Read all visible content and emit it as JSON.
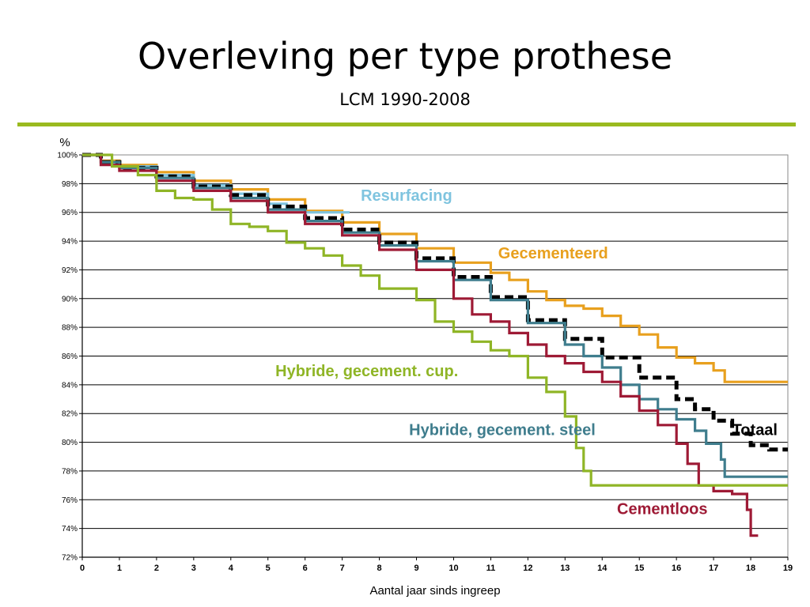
{
  "colors": {
    "rule": "#9aba1f",
    "grid": "#000000",
    "axis": "#000000"
  },
  "chart_data": {
    "type": "line",
    "title": "Overleving per type prothese",
    "subtitle": "LCM 1990-2008",
    "xlabel": "Aantal jaar sinds ingreep",
    "ylabel": "%",
    "xlim": [
      0,
      19
    ],
    "ylim": [
      72,
      100
    ],
    "grid": true,
    "x_ticks": [
      0,
      1,
      2,
      3,
      4,
      5,
      6,
      7,
      8,
      9,
      10,
      11,
      12,
      13,
      14,
      15,
      16,
      17,
      18,
      19
    ],
    "y_ticks": [
      72,
      74,
      76,
      78,
      80,
      82,
      84,
      86,
      88,
      90,
      92,
      94,
      96,
      98,
      100
    ],
    "y_tick_labels": [
      "72%",
      "74%",
      "76%",
      "78%",
      "80%",
      "82%",
      "84%",
      "86%",
      "88%",
      "90%",
      "92%",
      "94%",
      "96%",
      "98%",
      "100%"
    ],
    "series": [
      {
        "name": "Gecementeerd",
        "color": "#e8a01e",
        "dash": false,
        "step": true,
        "points": [
          [
            0,
            100
          ],
          [
            0.5,
            99.6
          ],
          [
            1,
            99.3
          ],
          [
            2,
            98.8
          ],
          [
            3,
            98.2
          ],
          [
            4,
            97.6
          ],
          [
            5,
            96.9
          ],
          [
            6,
            96.1
          ],
          [
            7,
            95.3
          ],
          [
            8,
            94.5
          ],
          [
            9,
            93.5
          ],
          [
            10,
            92.5
          ],
          [
            11,
            91.8
          ],
          [
            11.5,
            91.3
          ],
          [
            12,
            90.5
          ],
          [
            12.5,
            89.9
          ],
          [
            13,
            89.5
          ],
          [
            13.5,
            89.3
          ],
          [
            14,
            88.8
          ],
          [
            14.5,
            88.1
          ],
          [
            15,
            87.5
          ],
          [
            15.5,
            86.6
          ],
          [
            16,
            85.9
          ],
          [
            16.5,
            85.5
          ],
          [
            17,
            85.0
          ],
          [
            17.3,
            84.2
          ],
          [
            19,
            84.2
          ]
        ]
      },
      {
        "name": "Resurfacing",
        "color": "#7fc4df",
        "dash": false,
        "step": true,
        "points": [
          [
            0,
            100
          ],
          [
            0.5,
            99.5
          ],
          [
            1,
            99.2
          ],
          [
            2,
            98.6
          ],
          [
            3,
            97.9
          ],
          [
            4,
            97.3
          ],
          [
            5,
            96.6
          ],
          [
            5.5,
            96.2
          ],
          [
            6,
            96.0
          ],
          [
            7.2,
            96.0
          ]
        ]
      },
      {
        "name": "Totaal",
        "color": "#000000",
        "dash": true,
        "step": true,
        "points": [
          [
            0,
            100
          ],
          [
            0.5,
            99.5
          ],
          [
            1,
            99.1
          ],
          [
            2,
            98.5
          ],
          [
            3,
            97.8
          ],
          [
            4,
            97.2
          ],
          [
            5,
            96.4
          ],
          [
            6,
            95.6
          ],
          [
            7,
            94.8
          ],
          [
            8,
            93.9
          ],
          [
            9,
            92.8
          ],
          [
            10,
            91.5
          ],
          [
            11,
            90.1
          ],
          [
            12,
            88.5
          ],
          [
            13,
            87.2
          ],
          [
            14,
            85.9
          ],
          [
            15,
            84.5
          ],
          [
            16,
            83.0
          ],
          [
            16.5,
            82.3
          ],
          [
            17,
            81.5
          ],
          [
            17.5,
            80.6
          ],
          [
            18,
            79.8
          ],
          [
            18.5,
            79.5
          ],
          [
            19,
            79.5
          ]
        ]
      },
      {
        "name": "Hybride, gecement. steel",
        "color": "#3f7d8d",
        "dash": false,
        "step": true,
        "points": [
          [
            0,
            100
          ],
          [
            0.5,
            99.5
          ],
          [
            1,
            99.1
          ],
          [
            2,
            98.4
          ],
          [
            3,
            97.7
          ],
          [
            4,
            97.0
          ],
          [
            5,
            96.2
          ],
          [
            6,
            95.4
          ],
          [
            7,
            94.6
          ],
          [
            8,
            93.7
          ],
          [
            9,
            92.6
          ],
          [
            10,
            91.3
          ],
          [
            11,
            89.9
          ],
          [
            12,
            88.3
          ],
          [
            13,
            86.8
          ],
          [
            13.5,
            86.0
          ],
          [
            14,
            85.2
          ],
          [
            14.5,
            84.0
          ],
          [
            15,
            83.0
          ],
          [
            15.5,
            82.3
          ],
          [
            16,
            81.6
          ],
          [
            16.5,
            80.8
          ],
          [
            16.8,
            79.9
          ],
          [
            17,
            79.9
          ],
          [
            17.2,
            78.8
          ],
          [
            17.3,
            77.6
          ],
          [
            19,
            77.6
          ]
        ]
      },
      {
        "name": "Cementloos",
        "color": "#9e1a35",
        "dash": false,
        "step": true,
        "points": [
          [
            0,
            100
          ],
          [
            0.5,
            99.3
          ],
          [
            1,
            98.9
          ],
          [
            2,
            98.2
          ],
          [
            3,
            97.5
          ],
          [
            4,
            96.8
          ],
          [
            5,
            96.0
          ],
          [
            6,
            95.2
          ],
          [
            7,
            94.4
          ],
          [
            8,
            93.4
          ],
          [
            9,
            92.0
          ],
          [
            10,
            90.0
          ],
          [
            10.5,
            88.9
          ],
          [
            11,
            88.4
          ],
          [
            11.5,
            87.6
          ],
          [
            12,
            86.8
          ],
          [
            12.5,
            86.0
          ],
          [
            13,
            85.5
          ],
          [
            13.5,
            84.9
          ],
          [
            14,
            84.2
          ],
          [
            14.5,
            83.2
          ],
          [
            15,
            82.2
          ],
          [
            15.5,
            81.2
          ],
          [
            16,
            79.9
          ],
          [
            16.3,
            78.5
          ],
          [
            16.6,
            77.0
          ],
          [
            17,
            76.6
          ],
          [
            17.5,
            76.4
          ],
          [
            17.9,
            75.3
          ],
          [
            18,
            73.5
          ],
          [
            18.2,
            73.5
          ]
        ]
      },
      {
        "name": "Hybride, gecement. cup.",
        "color": "#8fb526",
        "dash": false,
        "step": true,
        "points": [
          [
            0,
            100
          ],
          [
            0.8,
            99.2
          ],
          [
            1.5,
            98.6
          ],
          [
            2,
            97.5
          ],
          [
            2.5,
            97.0
          ],
          [
            3,
            96.9
          ],
          [
            3.5,
            96.2
          ],
          [
            4,
            95.2
          ],
          [
            4.5,
            95.0
          ],
          [
            5,
            94.7
          ],
          [
            5.5,
            93.9
          ],
          [
            6,
            93.5
          ],
          [
            6.5,
            93.0
          ],
          [
            7,
            92.3
          ],
          [
            7.5,
            91.6
          ],
          [
            8,
            90.7
          ],
          [
            9,
            89.9
          ],
          [
            9.5,
            88.4
          ],
          [
            10,
            87.7
          ],
          [
            10.5,
            87.0
          ],
          [
            11,
            86.4
          ],
          [
            11.5,
            86.0
          ],
          [
            12,
            84.5
          ],
          [
            12.5,
            83.5
          ],
          [
            13,
            81.8
          ],
          [
            13.3,
            79.6
          ],
          [
            13.5,
            78.0
          ],
          [
            13.7,
            77.0
          ],
          [
            19,
            77.0
          ]
        ]
      }
    ],
    "labels": [
      {
        "text": "Resurfacing",
        "color": "#7fc4df",
        "x": 7.5,
        "y": 96.8,
        "anchor": "start"
      },
      {
        "text": "Gecementeerd",
        "color": "#e8a01e",
        "x": 11.2,
        "y": 92.8,
        "anchor": "start"
      },
      {
        "text": "Hybride, gecement. cup.",
        "color": "#8fb526",
        "x": 5.2,
        "y": 84.6,
        "anchor": "start"
      },
      {
        "text": "Hybride, gecement. steel",
        "color": "#3f7d8d",
        "x": 8.8,
        "y": 80.5,
        "anchor": "start"
      },
      {
        "text": "Totaal",
        "color": "#000000",
        "x": 17.5,
        "y": 80.5,
        "anchor": "start"
      },
      {
        "text": "Cementloos",
        "color": "#9e1a35",
        "x": 14.4,
        "y": 75.0,
        "anchor": "start"
      }
    ]
  }
}
